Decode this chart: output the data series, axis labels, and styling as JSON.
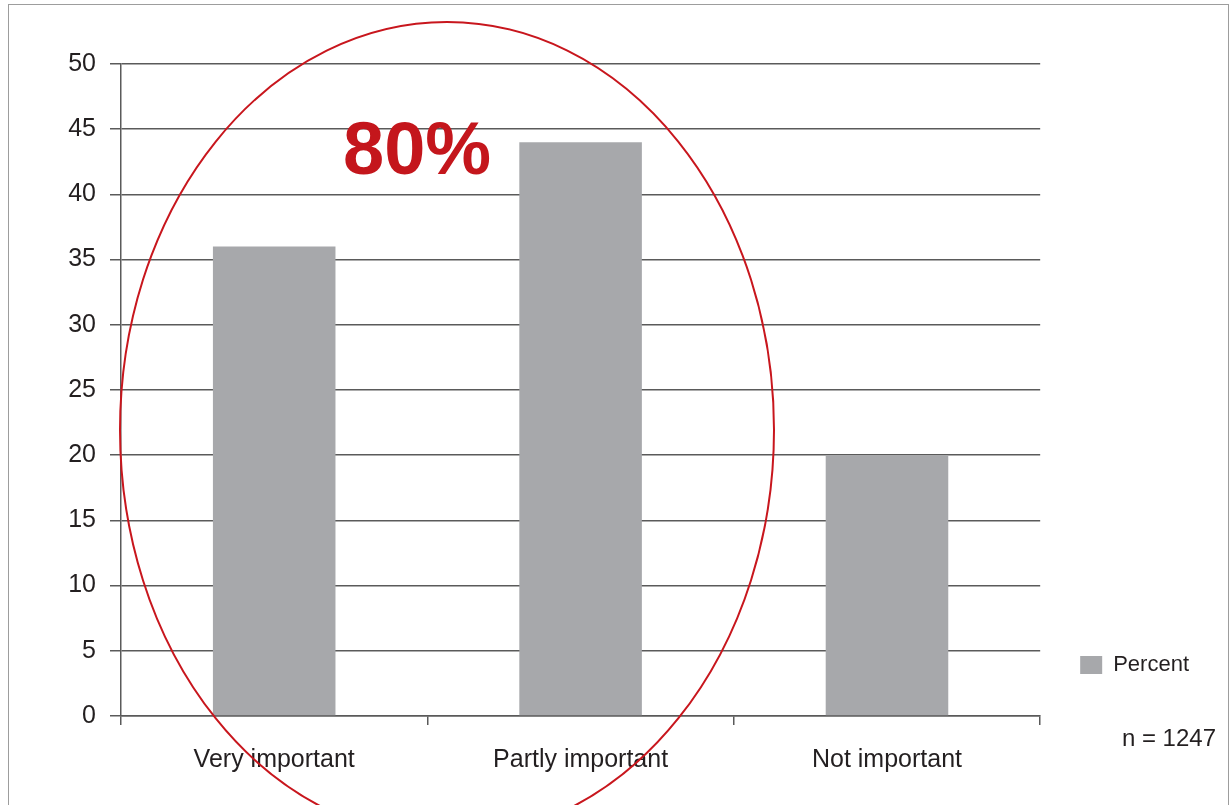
{
  "chart_data": {
    "type": "bar",
    "categories": [
      "Very important",
      "Partly important",
      "Not important"
    ],
    "series": [
      {
        "name": "Percent",
        "color": "#a7a8ab",
        "values": [
          36,
          44,
          20
        ]
      }
    ],
    "ylim": [
      0,
      50
    ],
    "yticks": [
      0,
      5,
      10,
      15,
      20,
      25,
      30,
      35,
      40,
      45,
      50
    ],
    "grid": "y",
    "legend": "bottom right",
    "annotations": [
      "80%",
      "n = 1247"
    ]
  }
}
